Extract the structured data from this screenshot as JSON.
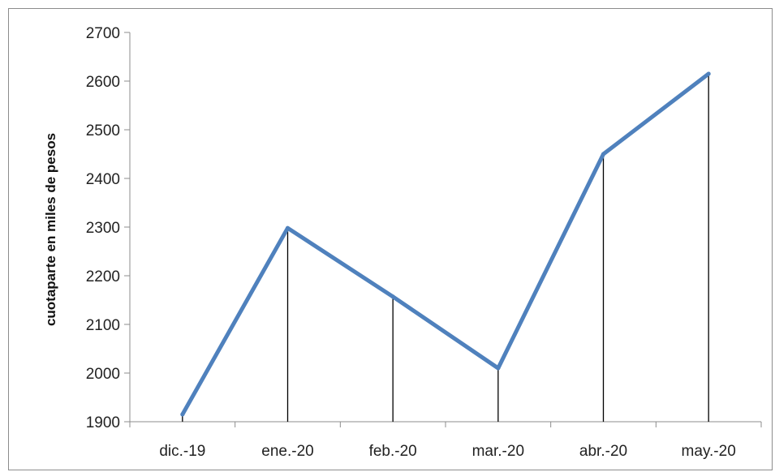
{
  "chart_data": {
    "type": "line",
    "categories": [
      "dic.-19",
      "ene.-20",
      "feb.-20",
      "mar.-20",
      "abr.-20",
      "may.-20"
    ],
    "series": [
      {
        "values": [
          1915,
          2298,
          2157,
          2010,
          2450,
          2615
        ],
        "color": "#4f81bd"
      }
    ],
    "title": "",
    "xlabel": "",
    "ylabel": "cuotaparte en miles de pesos",
    "ylim": [
      1900,
      2700
    ],
    "yticks": [
      1900,
      2000,
      2100,
      2200,
      2300,
      2400,
      2500,
      2600,
      2700
    ],
    "drop_lines": true,
    "grid": false,
    "legend": "none"
  }
}
